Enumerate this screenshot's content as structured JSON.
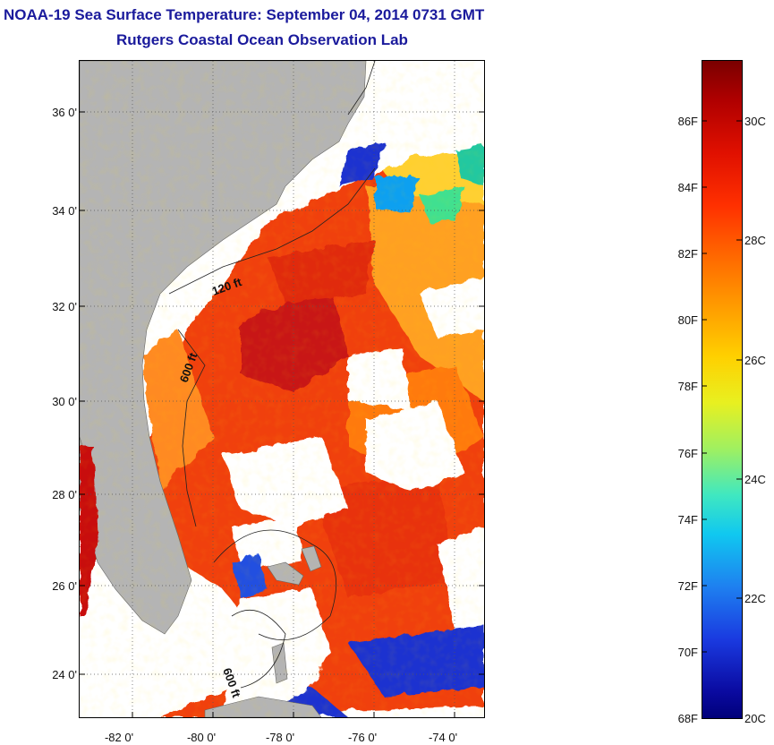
{
  "title_line1": "NOAA-19 Sea Surface Temperature:  September 04, 2014 0731 GMT",
  "title_line2": "Rutgers Coastal Ocean Observation Lab",
  "latitude_labels": [
    "36 0'",
    "34 0'",
    "32 0'",
    "30 0'",
    "28 0'",
    "26 0'",
    "24 0'"
  ],
  "longitude_labels": [
    "-82 0'",
    "-80 0'",
    "-78 0'",
    "-76 0'",
    "-74 0'"
  ],
  "contour_labels": [
    "120 ft",
    "600 ft",
    "600 ft"
  ],
  "colorbar_fahrenheit": [
    "86F",
    "84F",
    "82F",
    "80F",
    "78F",
    "76F",
    "74F",
    "72F",
    "70F",
    "68F"
  ],
  "colorbar_celsius": [
    "30C",
    "28C",
    "26C",
    "24C",
    "22C",
    "20C"
  ],
  "colors": {
    "title": "#1a1a9c",
    "land": "#b4b4b4",
    "cloud": "#ffffff",
    "warm": "#e02000",
    "cool": "#1a20c8"
  }
}
